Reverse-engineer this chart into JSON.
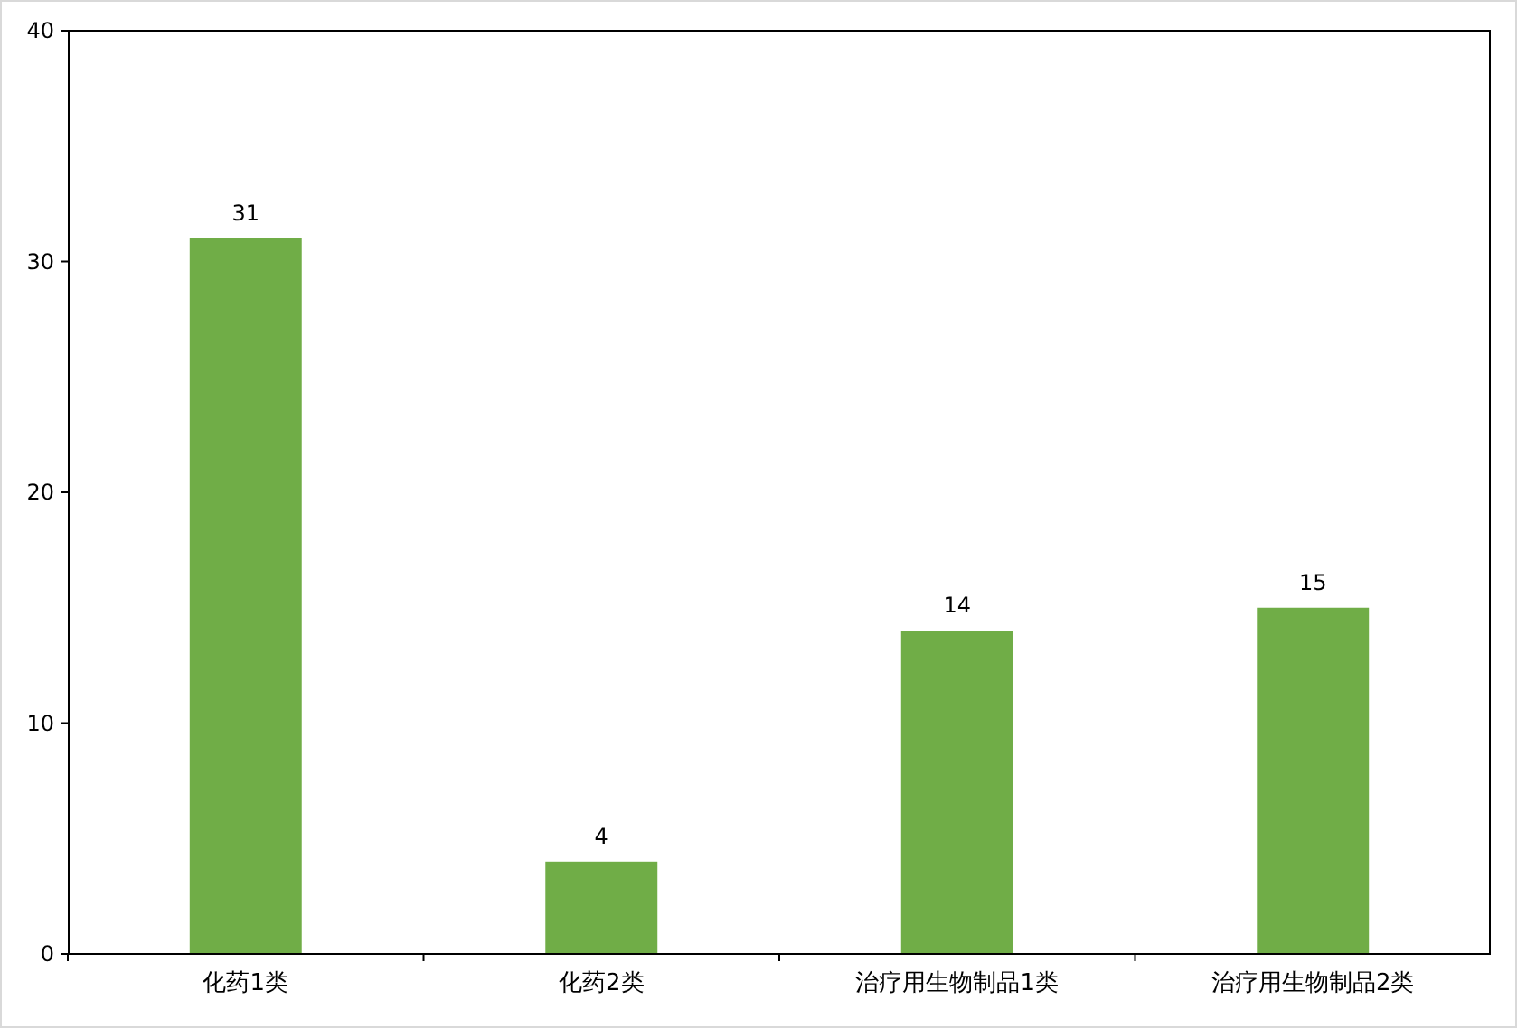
{
  "chart_data": {
    "type": "bar",
    "categories": [
      "化药1类",
      "化药2类",
      "治疗用生物制品1类",
      "治疗用生物制品2类"
    ],
    "values": [
      31,
      4,
      14,
      15
    ],
    "color": "#70ad47",
    "ylim": [
      0,
      40
    ],
    "yticks": [
      0,
      10,
      20,
      30,
      40
    ],
    "grid": false,
    "data_labels": true
  }
}
